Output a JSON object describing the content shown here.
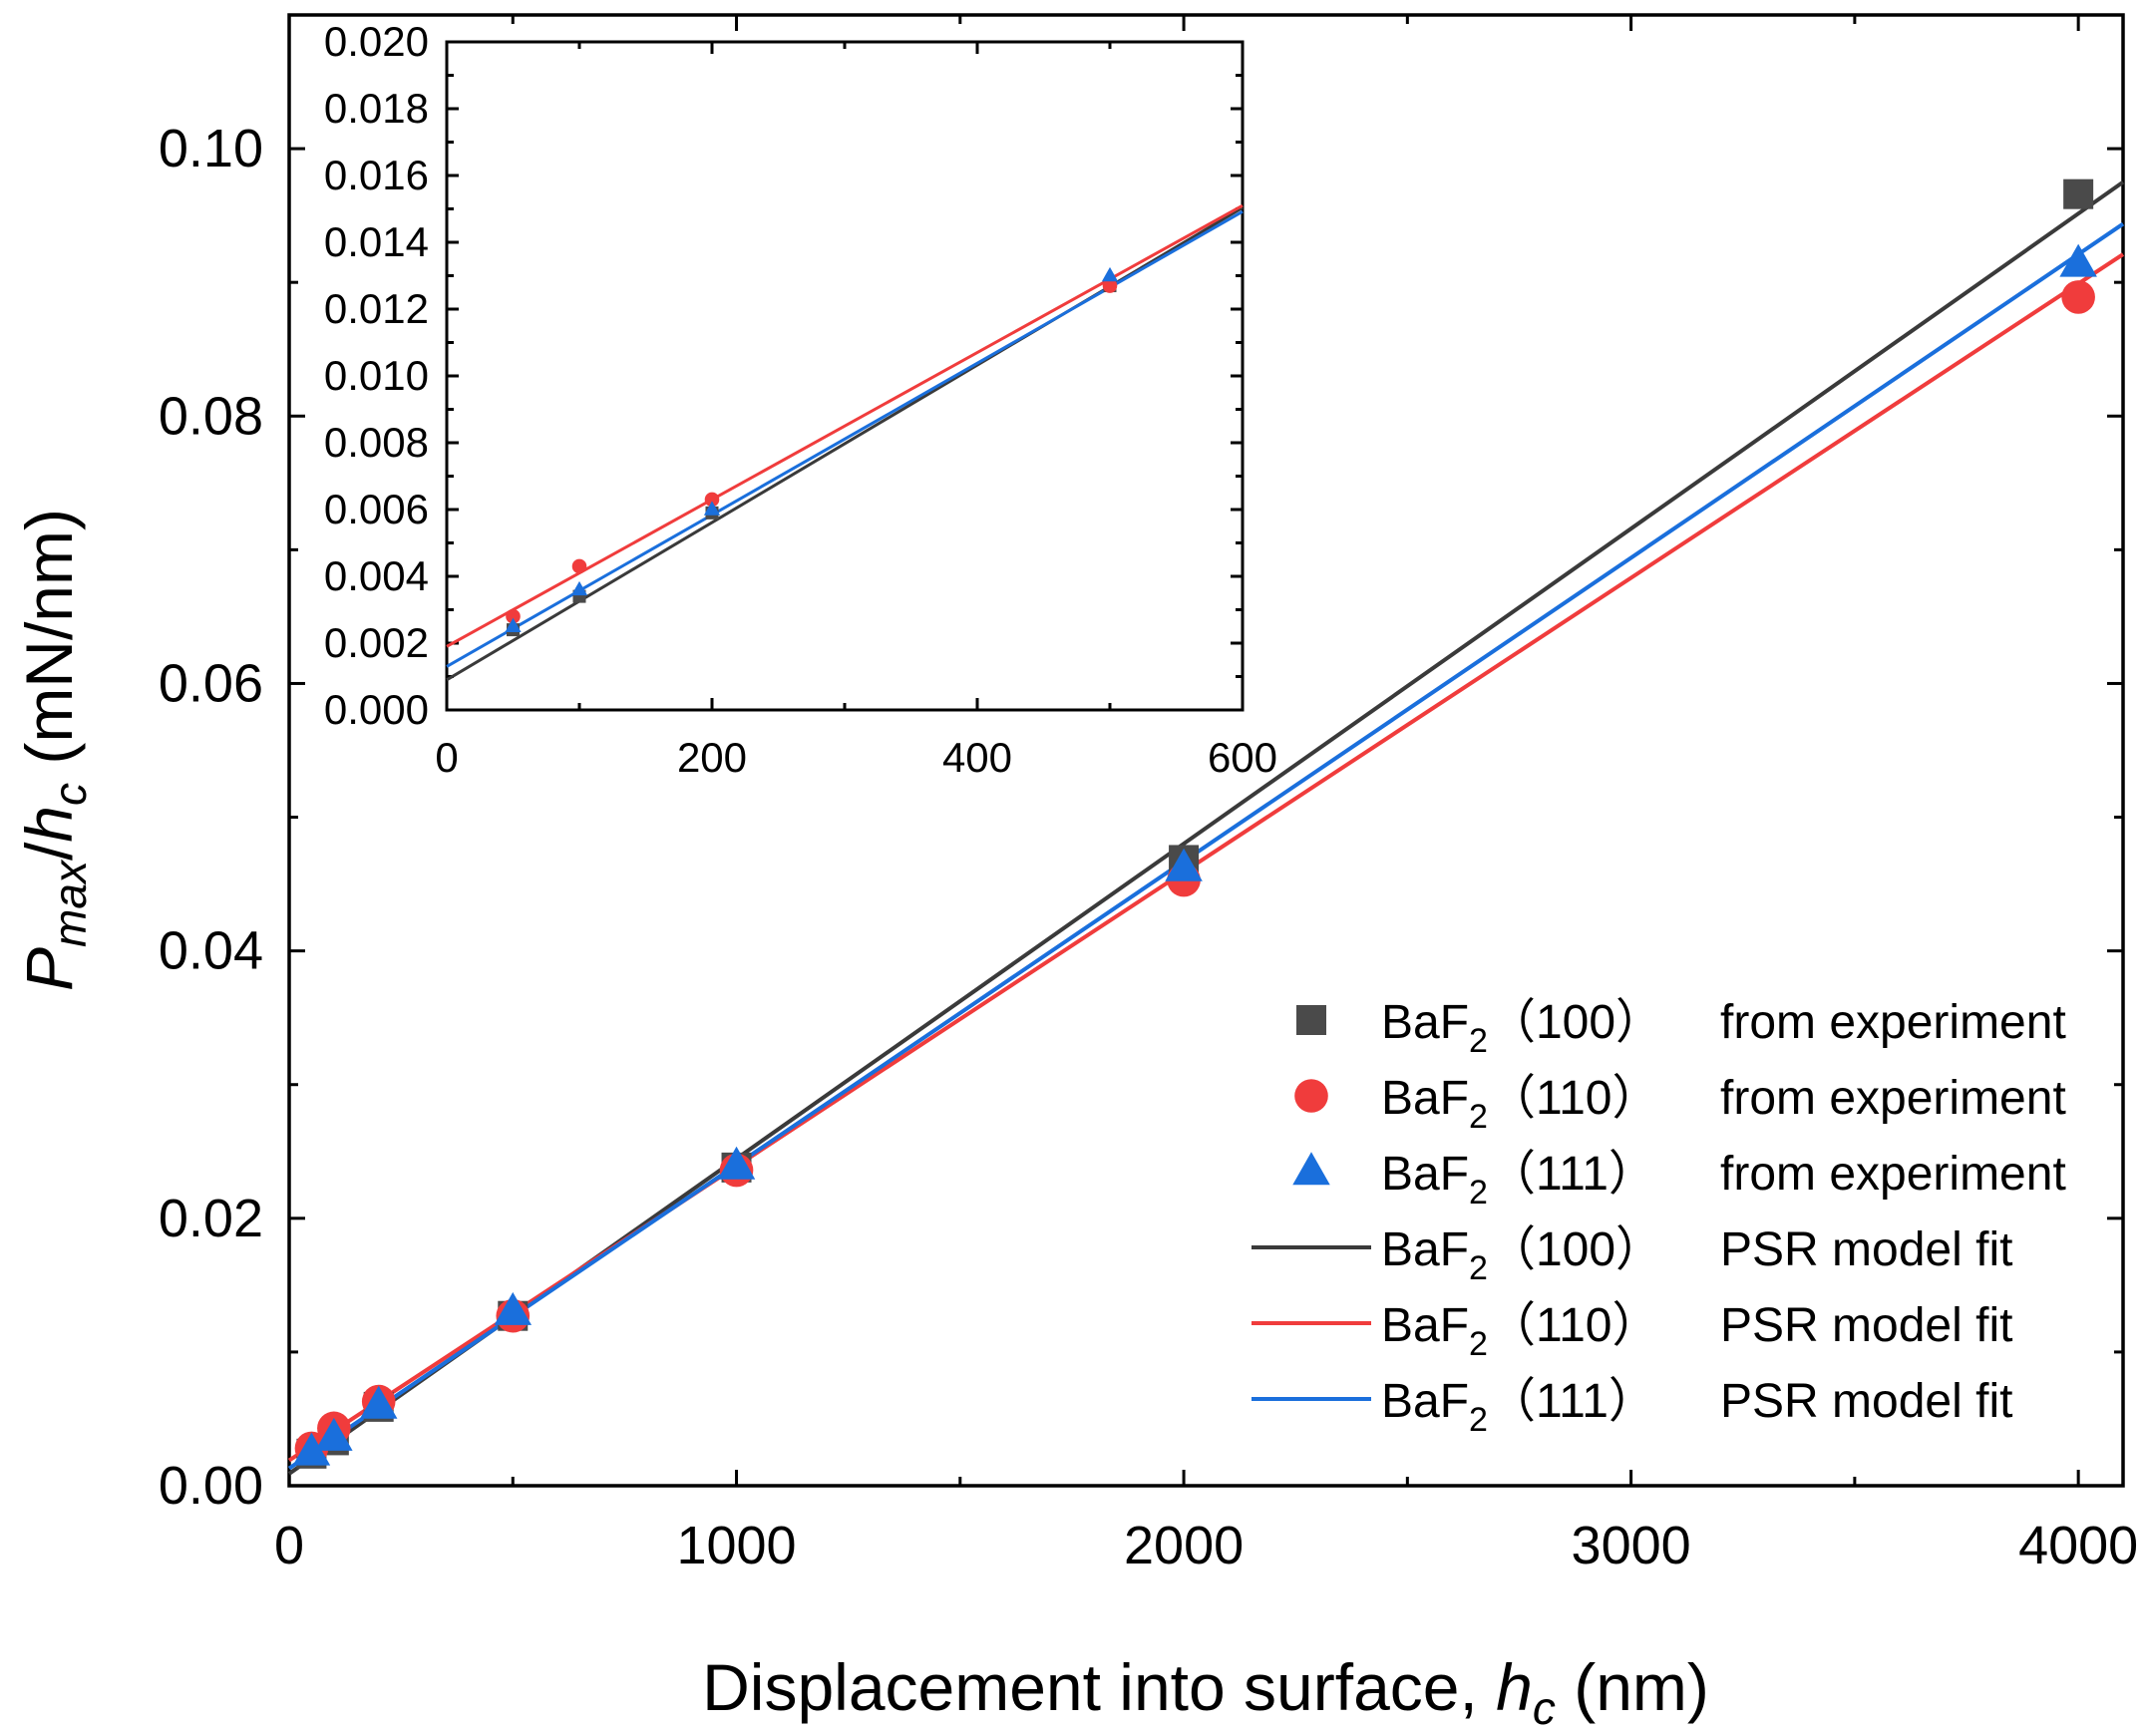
{
  "chart_data": {
    "type": "scatter",
    "main": {
      "xlabel": {
        "main": "Displacement into surface, ",
        "var": "h",
        "sub": "c",
        "unit": " (nm)"
      },
      "ylabel": {
        "p": "P",
        "p_sub": "max",
        "slash": "/",
        "h": "h",
        "h_sub": "c",
        "unit": " (mN/nm)"
      },
      "xlim": [
        0,
        4100
      ],
      "ylim": [
        0,
        0.11
      ],
      "xticks": [
        0,
        1000,
        2000,
        3000,
        4000
      ],
      "xtick_labels": [
        "0",
        "1000",
        "2000",
        "3000",
        "4000"
      ],
      "yticks": [
        0,
        0.02,
        0.04,
        0.06,
        0.08,
        0.1
      ],
      "ytick_labels": [
        "0.00",
        "0.02",
        "0.04",
        "0.06",
        "0.08",
        "0.10"
      ]
    },
    "inset": {
      "xlim": [
        0,
        600
      ],
      "ylim": [
        0,
        0.02
      ],
      "xticks": [
        0,
        200,
        400,
        600
      ],
      "xtick_labels": [
        "0",
        "200",
        "400",
        "600"
      ],
      "yticks": [
        0,
        0.002,
        0.004,
        0.006,
        0.008,
        0.01,
        0.012,
        0.014,
        0.016,
        0.018,
        0.02
      ],
      "ytick_labels": [
        "0.000",
        "0.002",
        "0.004",
        "0.006",
        "0.008",
        "0.010",
        "0.012",
        "0.014",
        "0.016",
        "0.018",
        "0.020"
      ]
    },
    "series": [
      {
        "name": "BaF2 (100) from experiment",
        "kind": "scatter",
        "marker": "square",
        "color": "#4a4a4a",
        "x": [
          50,
          100,
          200,
          500,
          1000,
          2000,
          4000
        ],
        "y": [
          0.0024,
          0.0034,
          0.0059,
          0.0127,
          0.0238,
          0.0468,
          0.0966
        ]
      },
      {
        "name": "BaF2 (110) from experiment",
        "kind": "scatter",
        "marker": "circle",
        "color": "#f03c3c",
        "x": [
          50,
          100,
          200,
          500,
          1000,
          2000,
          4000
        ],
        "y": [
          0.0028,
          0.0043,
          0.0063,
          0.0127,
          0.0236,
          0.0453,
          0.0889
        ]
      },
      {
        "name": "BaF2 (111) from experiment",
        "kind": "scatter",
        "marker": "triangle",
        "color": "#1a6fdc",
        "x": [
          50,
          100,
          200,
          500,
          1000,
          2000,
          4000
        ],
        "y": [
          0.0025,
          0.0036,
          0.006,
          0.013,
          0.0239,
          0.0462,
          0.0914
        ]
      },
      {
        "name": "BaF2 (100) PSR model fit",
        "kind": "line",
        "color": "#3a3a3a",
        "intercept": 0.0009,
        "slope": 2.356e-05
      },
      {
        "name": "BaF2 (110) PSR model fit",
        "kind": "line",
        "color": "#f03c3c",
        "intercept": 0.0019,
        "slope": 2.2e-05
      },
      {
        "name": "BaF2 (111) PSR model fit",
        "kind": "line",
        "color": "#1a6fdc",
        "intercept": 0.0013,
        "slope": 2.27e-05
      }
    ],
    "legend": {
      "placement": "lower-right",
      "entries": [
        {
          "base": "BaF",
          "sub": "2",
          "plane": "（100）",
          "desc": "from experiment",
          "marker": "square",
          "color": "#4a4a4a"
        },
        {
          "base": "BaF",
          "sub": "2",
          "plane": "（110）",
          "desc": "from experiment",
          "marker": "circle",
          "color": "#f03c3c"
        },
        {
          "base": "BaF",
          "sub": "2",
          "plane": "（111）",
          "desc": "from experiment",
          "marker": "triangle",
          "color": "#1a6fdc"
        },
        {
          "base": "BaF",
          "sub": "2",
          "plane": "（100）",
          "desc": "PSR model fit",
          "marker": "line",
          "color": "#3a3a3a"
        },
        {
          "base": "BaF",
          "sub": "2",
          "plane": "（110）",
          "desc": "PSR model fit",
          "marker": "line",
          "color": "#f03c3c"
        },
        {
          "base": "BaF",
          "sub": "2",
          "plane": "（111）",
          "desc": "PSR model fit",
          "marker": "line",
          "color": "#1a6fdc"
        }
      ]
    }
  }
}
